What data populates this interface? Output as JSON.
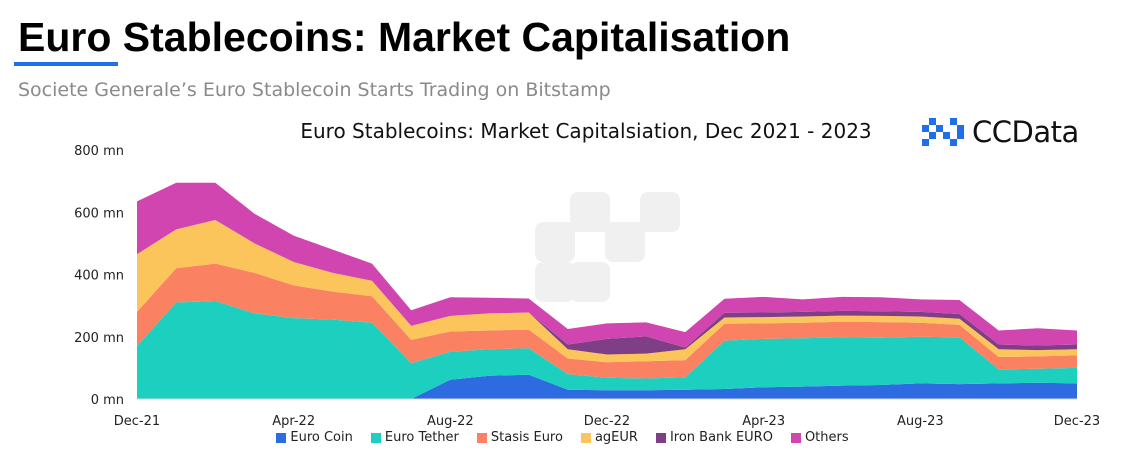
{
  "header": {
    "title": "Euro Stablecoins: Market Capitalisation",
    "subtitle": "Societe Generale’s Euro Stablecoin Starts Trading on Bitstamp",
    "logo_text": "CCData",
    "accent_color": "#1f6feb"
  },
  "chart_data": {
    "type": "area",
    "stacked": true,
    "title": "Euro Stablecoins: Market Capitalsiation, Dec 2021 - 2023",
    "xlabel": "",
    "ylabel": "",
    "ylim": [
      0,
      800
    ],
    "y_ticks": [
      0,
      200,
      400,
      600,
      800
    ],
    "y_tick_labels": [
      "0 mn",
      "200 mn",
      "400 mn",
      "600 mn",
      "800 mn"
    ],
    "x": [
      "Dec-21",
      "Jan-22",
      "Feb-22",
      "Mar-22",
      "Apr-22",
      "May-22",
      "Jun-22",
      "Jul-22",
      "Aug-22",
      "Sep-22",
      "Oct-22",
      "Nov-22",
      "Dec-22",
      "Jan-23",
      "Feb-23",
      "Mar-23",
      "Apr-23",
      "May-23",
      "Jun-23",
      "Jul-23",
      "Aug-23",
      "Sep-23",
      "Oct-23",
      "Nov-23",
      "Dec-23"
    ],
    "x_tick_labels": [
      {
        "index": 0,
        "label": "Dec-21"
      },
      {
        "index": 4,
        "label": "Apr-22"
      },
      {
        "index": 8,
        "label": "Aug-22"
      },
      {
        "index": 12,
        "label": "Dec-22"
      },
      {
        "index": 16,
        "label": "Apr-23"
      },
      {
        "index": 20,
        "label": "Aug-23"
      },
      {
        "index": 24,
        "label": "Dec-23"
      }
    ],
    "grid": false,
    "legend_position": "bottom",
    "series": [
      {
        "name": "Euro Coin",
        "color": "#2d6ce0",
        "values": [
          0,
          0,
          0,
          0,
          0,
          0,
          0,
          0,
          62,
          75,
          78,
          30,
          28,
          28,
          30,
          32,
          38,
          40,
          43,
          45,
          50,
          48,
          50,
          52,
          50
        ]
      },
      {
        "name": "Euro Tether",
        "color": "#1ccfbf",
        "values": [
          170,
          310,
          315,
          275,
          260,
          255,
          245,
          115,
          90,
          85,
          85,
          50,
          40,
          38,
          40,
          155,
          155,
          155,
          155,
          152,
          150,
          150,
          45,
          45,
          50
        ]
      },
      {
        "name": "Stasis Euro",
        "color": "#fa8162",
        "values": [
          110,
          110,
          120,
          130,
          105,
          90,
          85,
          75,
          65,
          60,
          60,
          50,
          50,
          55,
          55,
          55,
          50,
          50,
          50,
          50,
          45,
          40,
          40,
          40,
          40
        ]
      },
      {
        "name": "agEUR",
        "color": "#fcc55b",
        "values": [
          185,
          125,
          140,
          95,
          75,
          60,
          50,
          45,
          50,
          55,
          55,
          30,
          25,
          25,
          35,
          20,
          20,
          20,
          20,
          20,
          20,
          20,
          25,
          20,
          20
        ]
      },
      {
        "name": "Iron Bank EURO",
        "color": "#7f3f86",
        "values": [
          0,
          0,
          0,
          0,
          0,
          0,
          0,
          0,
          0,
          0,
          0,
          15,
          50,
          55,
          5,
          15,
          15,
          15,
          15,
          15,
          15,
          15,
          15,
          15,
          15
        ]
      },
      {
        "name": "Others",
        "color": "#d145b0",
        "values": [
          170,
          150,
          120,
          95,
          85,
          75,
          55,
          50,
          60,
          50,
          45,
          50,
          50,
          45,
          50,
          45,
          50,
          40,
          45,
          45,
          40,
          45,
          45,
          55,
          45
        ]
      }
    ]
  }
}
